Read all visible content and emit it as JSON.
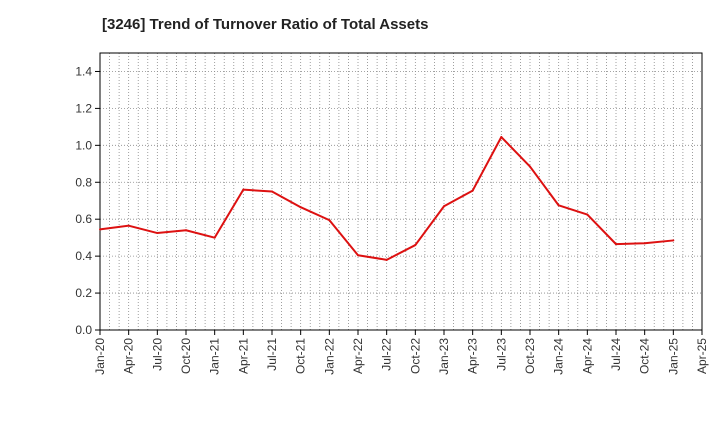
{
  "chart_data": {
    "type": "line",
    "title": "[3246]  Trend of Turnover Ratio of Total Assets",
    "xlabel": "",
    "ylabel": "",
    "ylim": [
      0,
      1.5
    ],
    "yticks": [
      0.0,
      0.2,
      0.4,
      0.6,
      0.8,
      1.0,
      1.2,
      1.4
    ],
    "ytick_labels": [
      "0.0",
      "0.2",
      "0.4",
      "0.6",
      "0.8",
      "1.0",
      "1.2",
      "1.4"
    ],
    "x_tick_labels": [
      "Jan-20",
      "Apr-20",
      "Jul-20",
      "Oct-20",
      "Jan-21",
      "Apr-21",
      "Jul-21",
      "Oct-21",
      "Jan-22",
      "Apr-22",
      "Jul-22",
      "Oct-22",
      "Jan-23",
      "Apr-23",
      "Jul-23",
      "Oct-23",
      "Jan-24",
      "Apr-24",
      "Jul-24",
      "Oct-24",
      "Jan-25",
      "Apr-25"
    ],
    "grid": true,
    "series": [
      {
        "color": "#dd1111",
        "x": [
          "Jan-20",
          "Apr-20",
          "Jul-20",
          "Oct-20",
          "Jan-21",
          "Apr-21",
          "Jul-21",
          "Oct-21",
          "Jan-22",
          "Apr-22",
          "Jul-22",
          "Oct-22",
          "Jan-23",
          "Apr-23",
          "Jul-23",
          "Oct-23",
          "Jan-24",
          "Apr-24",
          "Jul-24",
          "Oct-24",
          "Jan-25"
        ],
        "values": [
          0.545,
          0.565,
          0.525,
          0.54,
          0.5,
          0.76,
          0.75,
          0.665,
          0.595,
          0.405,
          0.38,
          0.46,
          0.67,
          0.755,
          1.045,
          0.885,
          0.675,
          0.625,
          0.465,
          0.47,
          0.485
        ]
      }
    ]
  }
}
